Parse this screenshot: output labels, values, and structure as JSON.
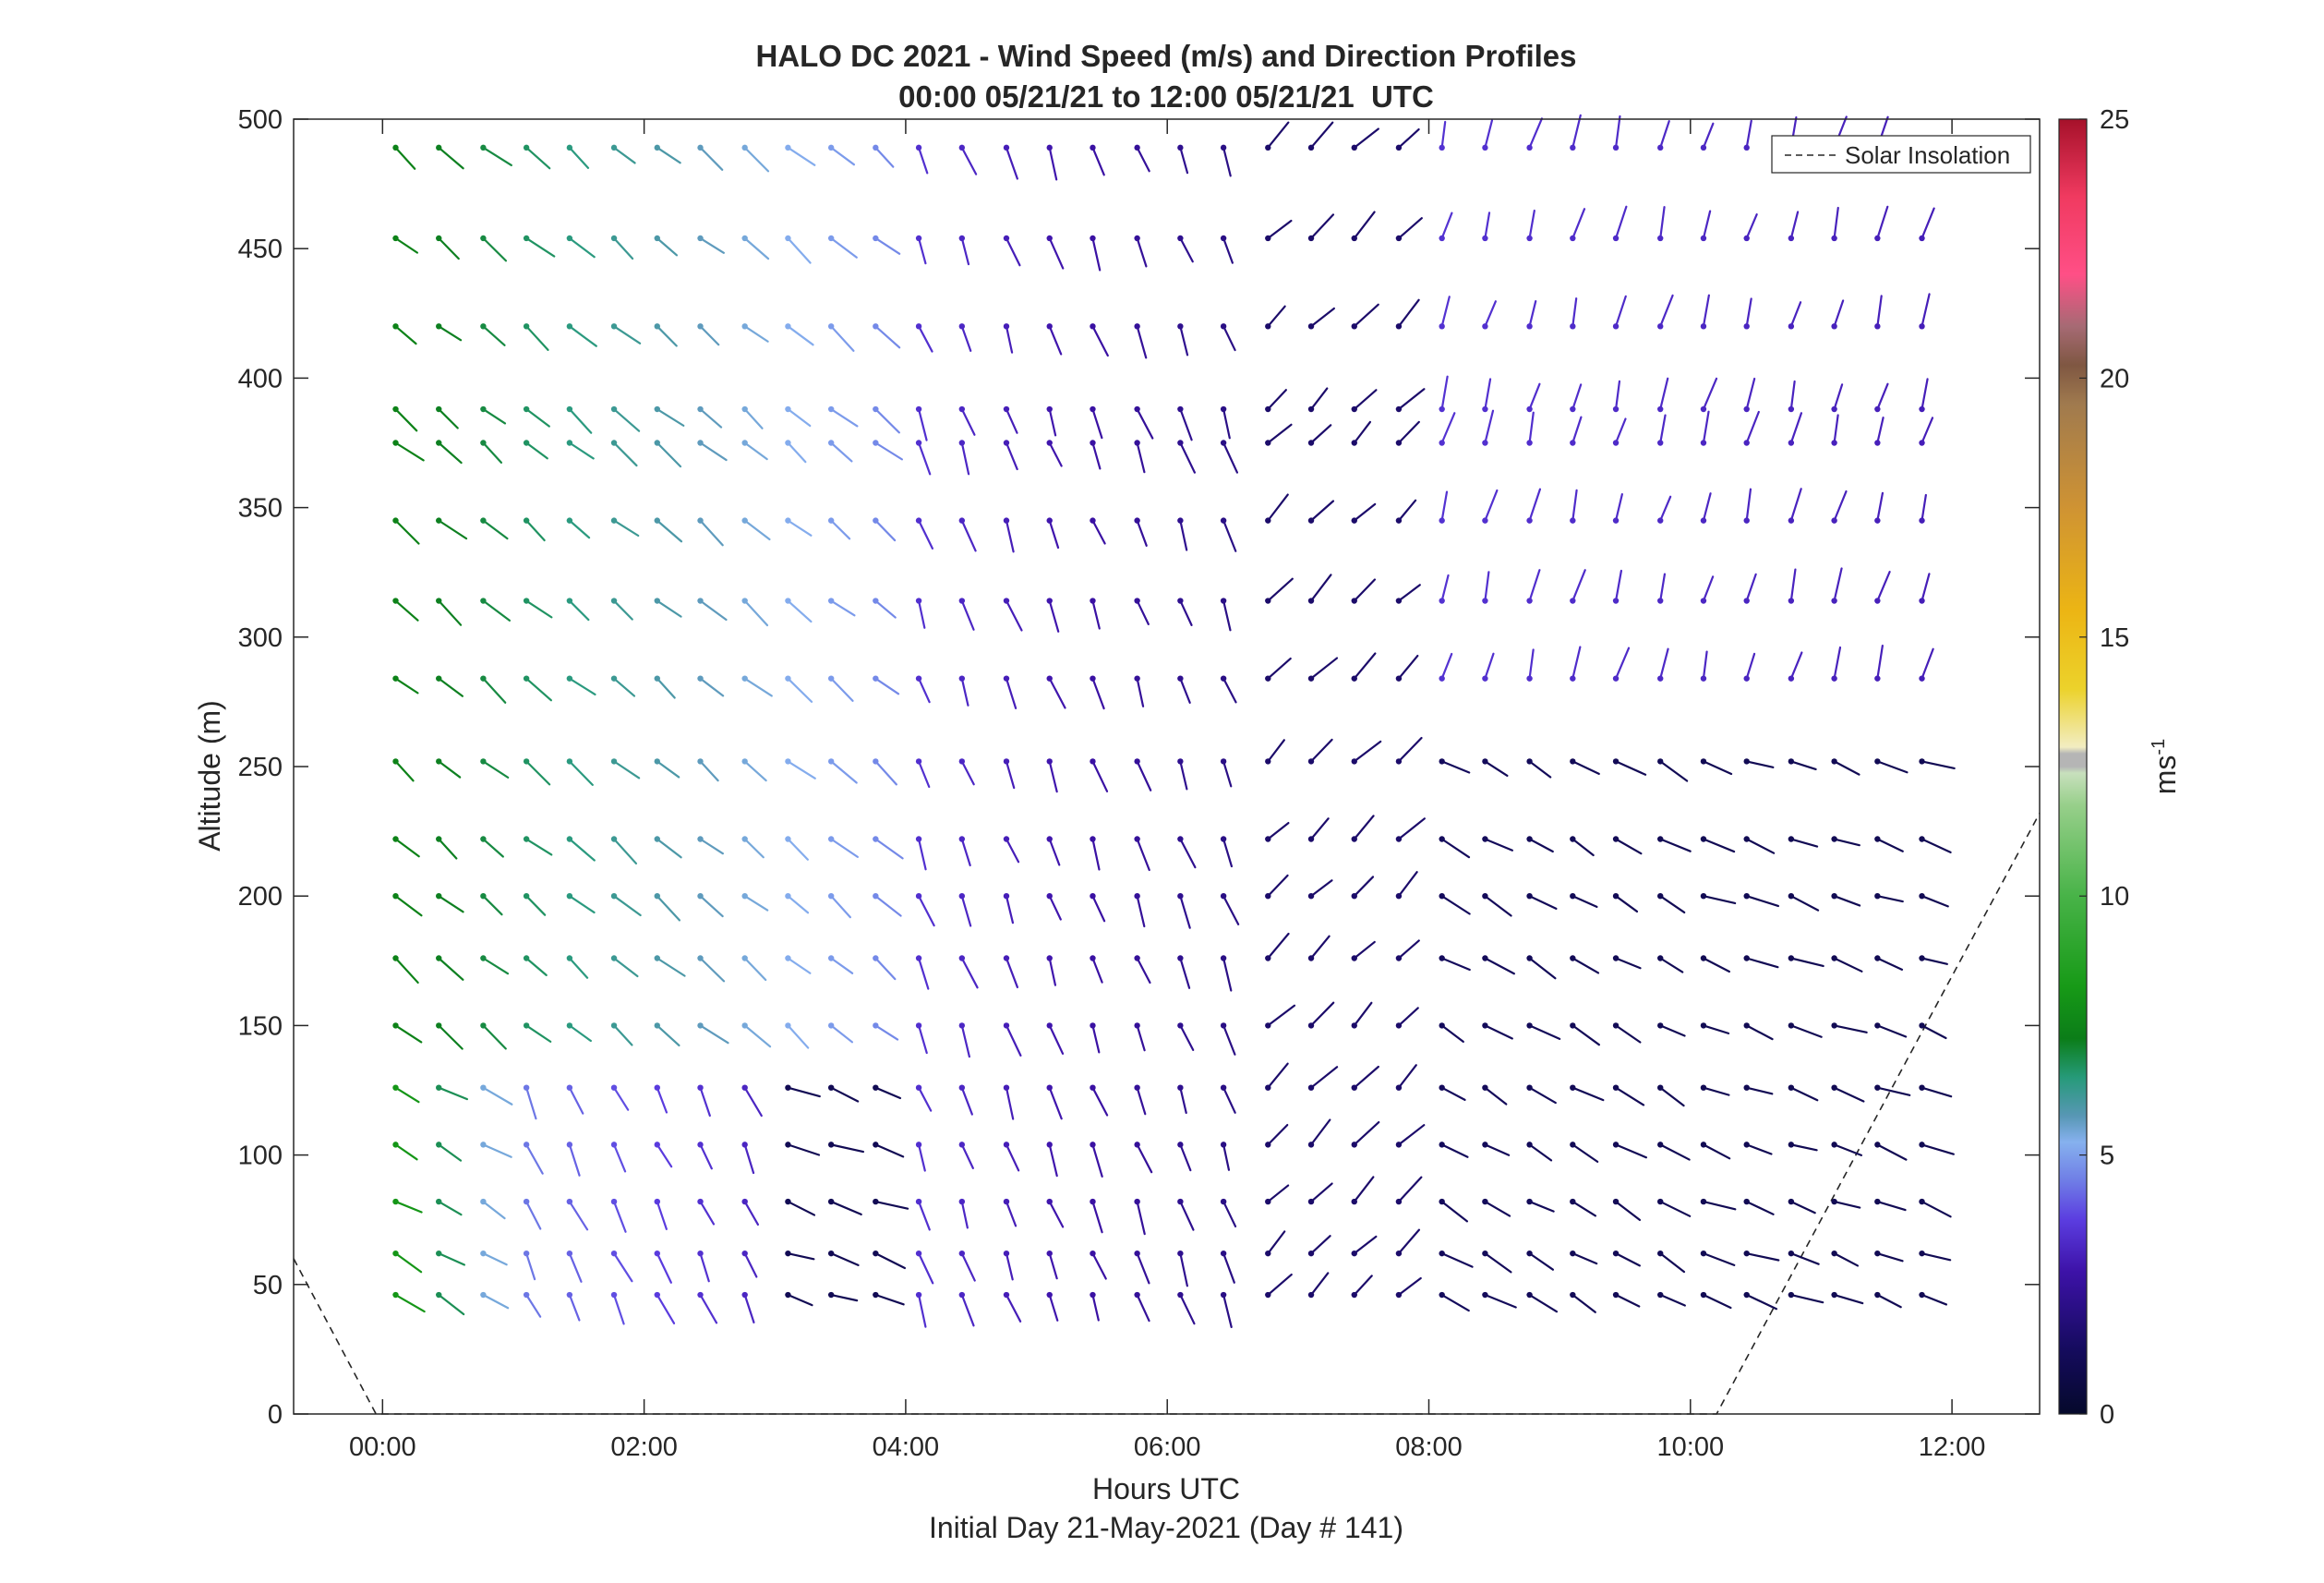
{
  "chart_data": {
    "type": "vector-field",
    "title": "HALO DC 2021 - Wind Speed (m/s) and Direction Profiles",
    "subtitle": "00:00 05/21/21 to 12:00 05/21/21  UTC",
    "xlabel": "Hours UTC",
    "xlabel2": "Initial Day 21-May-2021 (Day # 141)",
    "ylabel": "Altitude (m)",
    "xlim_hours": [
      -0.68,
      12.67
    ],
    "ylim": [
      0,
      500
    ],
    "xticks": [
      {
        "value": 0,
        "label": "00:00"
      },
      {
        "value": 2,
        "label": "02:00"
      },
      {
        "value": 4,
        "label": "04:00"
      },
      {
        "value": 6,
        "label": "06:00"
      },
      {
        "value": 8,
        "label": "08:00"
      },
      {
        "value": 10,
        "label": "10:00"
      },
      {
        "value": 12,
        "label": "12:00"
      }
    ],
    "yticks": [
      0,
      50,
      100,
      150,
      200,
      250,
      300,
      350,
      400,
      450,
      500
    ],
    "colorbar": {
      "label": "ms",
      "label_exponent": "-1",
      "range": [
        0,
        25
      ],
      "ticks": [
        0,
        5,
        10,
        15,
        20,
        25
      ]
    },
    "legend": {
      "placement": "top-right",
      "entries": [
        "Solar Insolation"
      ]
    },
    "solar_insolation": {
      "style": "dashed",
      "points": [
        [
          -0.68,
          60
        ],
        [
          -0.05,
          0
        ],
        [
          10.2,
          0
        ],
        [
          12.67,
          232
        ]
      ]
    },
    "altitudes_m": [
      46,
      62,
      82,
      104,
      126,
      150,
      176,
      200,
      222,
      252,
      284,
      314,
      345,
      375,
      388,
      420,
      454,
      489
    ],
    "times_hours": [
      0.1,
      0.43,
      0.77,
      1.1,
      1.43,
      1.77,
      2.1,
      2.43,
      2.77,
      3.1,
      3.43,
      3.77,
      4.1,
      4.43,
      4.77,
      5.1,
      5.43,
      5.77,
      6.1,
      6.43,
      6.77,
      7.1,
      7.43,
      7.77,
      8.1,
      8.43,
      8.77,
      9.1,
      9.43,
      9.77,
      10.1,
      10.43,
      10.77,
      11.1,
      11.43,
      11.77
    ],
    "regimes": [
      {
        "t_from": 0,
        "t_to": 1.0,
        "z_from": 0,
        "z_to": 130,
        "direction_deg": 300,
        "speed_ms_start": 8.5,
        "speed_ms_end": 4.5
      },
      {
        "t_from": 1.0,
        "t_to": 2.8,
        "z_from": 0,
        "z_to": 130,
        "direction_deg": 335,
        "speed_ms_start": 4.5,
        "speed_ms_end": 3.2
      },
      {
        "t_from": 0,
        "t_to": 4.0,
        "z_from": 130,
        "z_to": 500,
        "direction_deg": 310,
        "speed_ms_start": 7.5,
        "speed_ms_end": 4.5
      },
      {
        "t_from": 4.0,
        "t_to": 6.5,
        "z_from": 0,
        "z_to": 500,
        "direction_deg": 340,
        "speed_ms_start": 3.5,
        "speed_ms_end": 2.0
      },
      {
        "t_from": 6.5,
        "t_to": 8.0,
        "z_from": 0,
        "z_to": 500,
        "direction_deg": 225,
        "speed_ms_start": 1.5,
        "speed_ms_end": 1.5
      },
      {
        "t_from": 8.0,
        "t_to": 10.0,
        "z_from": 0,
        "z_to": 280,
        "direction_deg": 300,
        "speed_ms_start": 1.2,
        "speed_ms_end": 1.0
      },
      {
        "t_from": 8.0,
        "t_to": 12.0,
        "z_from": 280,
        "z_to": 500,
        "direction_deg": 195,
        "speed_ms_start": 3.5,
        "speed_ms_end": 3.0
      },
      {
        "t_from": 10.0,
        "t_to": 12.0,
        "z_from": 0,
        "z_to": 280,
        "direction_deg": 290,
        "speed_ms_start": 1.0,
        "speed_ms_end": 1.0
      }
    ]
  }
}
